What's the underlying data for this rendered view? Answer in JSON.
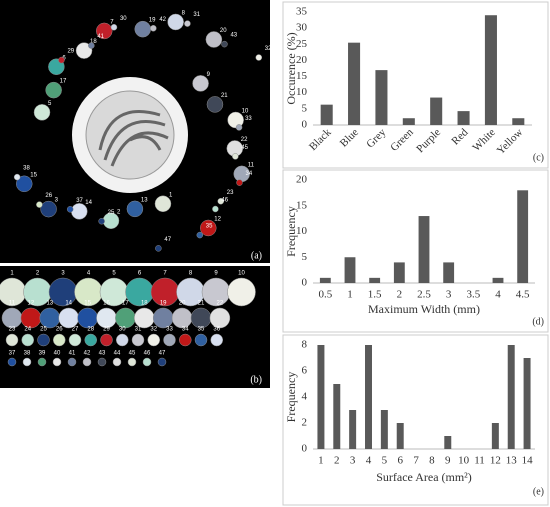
{
  "photos": [
    {
      "label": "(a)",
      "numbers": [
        1,
        2,
        3,
        4,
        5,
        6,
        7,
        8,
        9,
        10,
        11,
        12,
        13,
        14,
        15,
        16,
        17,
        18,
        19,
        20,
        21,
        22,
        23,
        24,
        25,
        26,
        27,
        28,
        29,
        30,
        31,
        32,
        33,
        34,
        35,
        36,
        37,
        38,
        39,
        40,
        41,
        42,
        43,
        44,
        45,
        46,
        47
      ]
    },
    {
      "label": "(b)",
      "numbers": [
        1,
        2,
        3,
        4,
        5,
        6,
        7,
        8,
        9,
        10,
        11,
        12,
        13,
        14,
        15,
        16,
        17,
        18,
        19,
        20,
        21,
        22,
        23,
        24,
        25,
        26,
        27,
        28,
        29,
        30,
        31,
        32,
        33,
        34,
        35,
        36,
        37,
        38,
        39,
        40,
        41,
        42,
        43,
        44,
        45,
        46,
        47
      ]
    }
  ],
  "chart_data": [
    {
      "type": "bar",
      "panel_label": "(c)",
      "y_label": "Occurence (%)",
      "categories": [
        "Black",
        "Blue",
        "Grey",
        "Green",
        "Purple",
        "Red",
        "White",
        "Yellow"
      ],
      "values": [
        6.3,
        25.5,
        17,
        2.1,
        8.5,
        4.3,
        34,
        2.1
      ],
      "color": "#595959",
      "ylim": [
        0,
        35
      ],
      "yticks": [
        0,
        5,
        10,
        15,
        20,
        25,
        30,
        35
      ],
      "grid": false
    },
    {
      "type": "bar",
      "panel_label": "(d)",
      "y_label": "Frequency",
      "x_label": "Maximum Width (mm)",
      "categories": [
        "0.5",
        "1",
        "1.5",
        "2",
        "2.5",
        "3",
        "3.5",
        "4",
        "4.5"
      ],
      "values": [
        1,
        5,
        1,
        4,
        13,
        4,
        0,
        1,
        18
      ],
      "color": "#595959",
      "ylim": [
        0,
        20
      ],
      "yticks": [
        0,
        5,
        10,
        15,
        20
      ],
      "grid": false
    },
    {
      "type": "bar",
      "panel_label": "(e)",
      "y_label": "Frequency",
      "x_label": "Surface Area (mm²)",
      "categories": [
        "1",
        "2",
        "3",
        "4",
        "5",
        "6",
        "7",
        "8",
        "9",
        "10",
        "11",
        "12",
        "13",
        "14"
      ],
      "values": [
        8,
        5,
        3,
        8,
        3,
        2,
        0,
        0,
        1,
        0,
        0,
        2,
        8,
        7
      ],
      "color": "#595959",
      "ylim": [
        0,
        8
      ],
      "yticks": [
        0,
        2,
        4,
        6,
        8
      ],
      "grid": false
    }
  ]
}
